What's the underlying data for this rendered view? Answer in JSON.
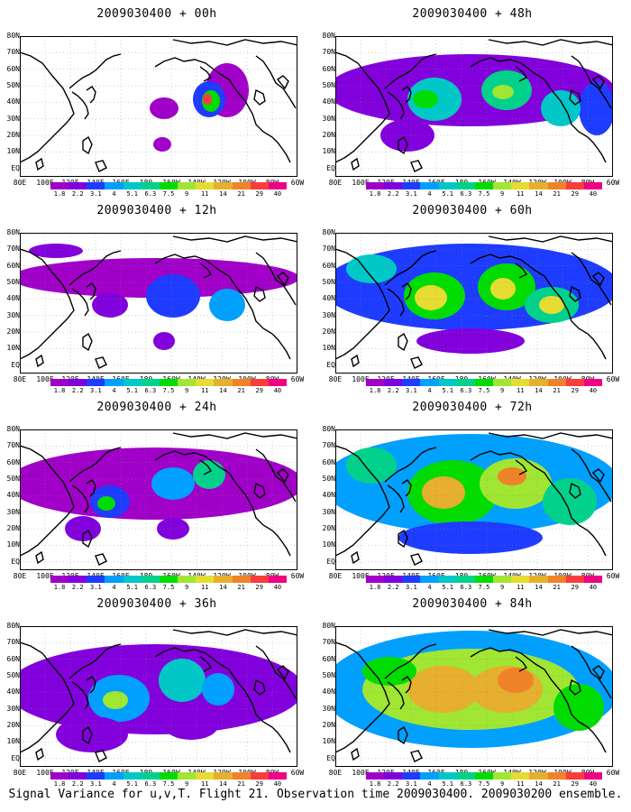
{
  "footer": "Signal Variance for u,v,T. Flight 21. Observation time 2009030400. 2009030200 ensemble.",
  "lat_labels": [
    "80N",
    "70N",
    "60N",
    "50N",
    "40N",
    "30N",
    "20N",
    "10N",
    "EQ"
  ],
  "lon_labels": [
    "80E",
    "100E",
    "120E",
    "140E",
    "160E",
    "180",
    "160W",
    "140W",
    "120W",
    "100W",
    "80W",
    "60W"
  ],
  "colorbar": {
    "levels": [
      "1.8",
      "2.2",
      "3.1",
      "4",
      "5.1",
      "6.3",
      "7.5",
      "9",
      "11",
      "14",
      "21",
      "29",
      "40"
    ],
    "colors": [
      "#a000c8",
      "#8200dc",
      "#1e3cff",
      "#00a0ff",
      "#00c8c8",
      "#00d28c",
      "#00dc00",
      "#a0e632",
      "#e6dc32",
      "#e6af2d",
      "#f08228",
      "#fa3c3c",
      "#f00082"
    ]
  },
  "panels": [
    {
      "title": "2009030400 + 00h",
      "forecast_hour": 0
    },
    {
      "title": "2009030400 + 48h",
      "forecast_hour": 48
    },
    {
      "title": "2009030400 + 12h",
      "forecast_hour": 12
    },
    {
      "title": "2009030400 + 60h",
      "forecast_hour": 60
    },
    {
      "title": "2009030400 + 24h",
      "forecast_hour": 24
    },
    {
      "title": "2009030400 + 72h",
      "forecast_hour": 72
    },
    {
      "title": "2009030400 + 36h",
      "forecast_hour": 36
    },
    {
      "title": "2009030400 + 84h",
      "forecast_hour": 84
    }
  ]
}
